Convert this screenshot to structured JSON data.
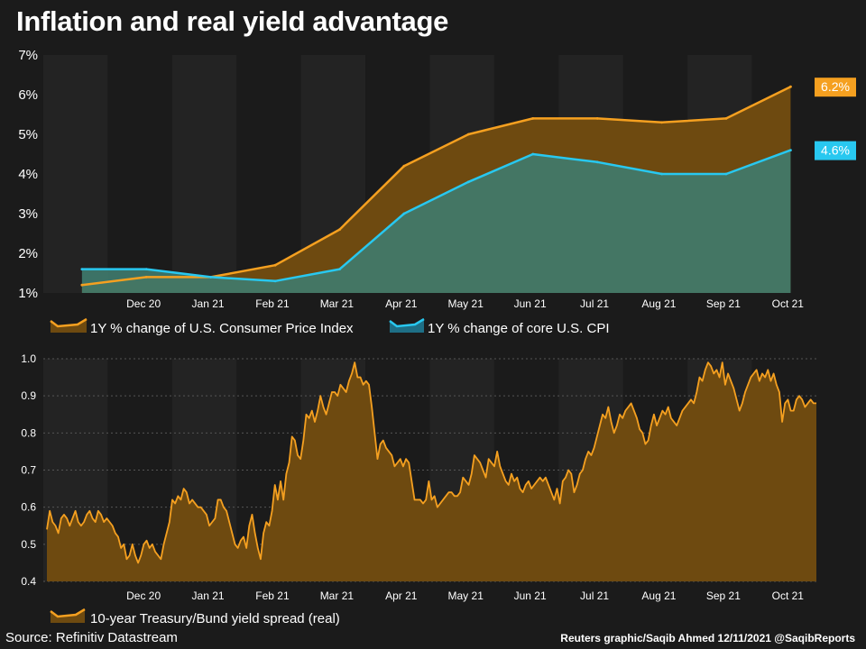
{
  "title": "Inflation and real yield advantage",
  "source": "Source: Refinitiv Datastream",
  "credit": "Reuters graphic/Saqib Ahmed 12/11/2021 @SaqibReports",
  "colors": {
    "background": "#1b1b1b",
    "band_dark": "#232323",
    "band_light": "#1b1b1b",
    "orange": "#f5a020",
    "cyan": "#28c8f0",
    "orange_fill": "#6e4a10",
    "teal_fill": "#3f7b6e"
  },
  "chart_data": [
    {
      "type": "area",
      "x_labels": [
        "Dec 20",
        "Jan 21",
        "Feb 21",
        "Mar 21",
        "Apr 21",
        "May 21",
        "Jun 21",
        "Jul 21",
        "Aug 21",
        "Sep 21",
        "Oct 21"
      ],
      "yticks": [
        "1%",
        "2%",
        "3%",
        "4%",
        "5%",
        "6%",
        "7%"
      ],
      "ylim": [
        1,
        7
      ],
      "grid": false,
      "legend_position": "bottom-left",
      "series": [
        {
          "name": "1Y % change of U.S. Consumer Price Index",
          "x": [
            "Nov 20",
            "Dec 20",
            "Jan 21",
            "Feb 21",
            "Mar 21",
            "Apr 21",
            "May 21",
            "Jun 21",
            "Jul 21",
            "Aug 21",
            "Sep 21",
            "Oct 21"
          ],
          "values": [
            1.2,
            1.4,
            1.4,
            1.7,
            2.6,
            4.2,
            5.0,
            5.4,
            5.4,
            5.3,
            5.4,
            6.2
          ],
          "end_label": "6.2%",
          "color": "#f5a020"
        },
        {
          "name": "1Y % change of core U.S. CPI",
          "x": [
            "Nov 20",
            "Dec 20",
            "Jan 21",
            "Feb 21",
            "Mar 21",
            "Apr 21",
            "May 21",
            "Jun 21",
            "Jul 21",
            "Aug 21",
            "Sep 21",
            "Oct 21"
          ],
          "values": [
            1.6,
            1.6,
            1.4,
            1.3,
            1.6,
            3.0,
            3.8,
            4.5,
            4.3,
            4.0,
            4.0,
            4.6
          ],
          "end_label": "4.6%",
          "color": "#28c8f0"
        }
      ]
    },
    {
      "type": "area",
      "x_labels": [
        "Dec 20",
        "Jan 21",
        "Feb 21",
        "Mar 21",
        "Apr 21",
        "May 21",
        "Jun 21",
        "Jul 21",
        "Aug 21",
        "Sep 21",
        "Oct 21"
      ],
      "yticks": [
        "0.4",
        "0.5",
        "0.6",
        "0.7",
        "0.8",
        "0.9",
        "1.0"
      ],
      "ylim": [
        0.4,
        1.0
      ],
      "grid": true,
      "legend_position": "bottom-left",
      "series": [
        {
          "name": "10-year Treasury/Bund yield spread (real)",
          "x_range": [
            "Nov 20",
            "Nov 21"
          ],
          "values": [
            0.54,
            0.59,
            0.56,
            0.55,
            0.53,
            0.57,
            0.58,
            0.57,
            0.55,
            0.57,
            0.59,
            0.56,
            0.55,
            0.56,
            0.58,
            0.59,
            0.57,
            0.56,
            0.59,
            0.58,
            0.56,
            0.57,
            0.56,
            0.55,
            0.53,
            0.52,
            0.49,
            0.5,
            0.46,
            0.47,
            0.5,
            0.47,
            0.45,
            0.47,
            0.5,
            0.51,
            0.49,
            0.5,
            0.48,
            0.47,
            0.46,
            0.5,
            0.53,
            0.56,
            0.62,
            0.61,
            0.63,
            0.62,
            0.65,
            0.64,
            0.61,
            0.62,
            0.61,
            0.6,
            0.6,
            0.59,
            0.58,
            0.55,
            0.56,
            0.57,
            0.62,
            0.62,
            0.6,
            0.59,
            0.56,
            0.53,
            0.5,
            0.49,
            0.51,
            0.52,
            0.49,
            0.55,
            0.58,
            0.53,
            0.49,
            0.46,
            0.53,
            0.56,
            0.55,
            0.59,
            0.66,
            0.62,
            0.67,
            0.62,
            0.69,
            0.72,
            0.79,
            0.78,
            0.74,
            0.73,
            0.78,
            0.85,
            0.84,
            0.86,
            0.83,
            0.86,
            0.9,
            0.87,
            0.85,
            0.88,
            0.91,
            0.91,
            0.9,
            0.93,
            0.92,
            0.91,
            0.94,
            0.96,
            0.99,
            0.95,
            0.95,
            0.93,
            0.94,
            0.93,
            0.87,
            0.8,
            0.73,
            0.77,
            0.78,
            0.76,
            0.75,
            0.74,
            0.71,
            0.72,
            0.73,
            0.71,
            0.73,
            0.72,
            0.67,
            0.62,
            0.62,
            0.62,
            0.61,
            0.62,
            0.67,
            0.62,
            0.63,
            0.6,
            0.61,
            0.62,
            0.63,
            0.64,
            0.64,
            0.63,
            0.63,
            0.64,
            0.68,
            0.67,
            0.66,
            0.69,
            0.74,
            0.73,
            0.72,
            0.7,
            0.68,
            0.73,
            0.72,
            0.71,
            0.75,
            0.71,
            0.69,
            0.67,
            0.66,
            0.69,
            0.67,
            0.68,
            0.65,
            0.64,
            0.66,
            0.67,
            0.65,
            0.66,
            0.67,
            0.68,
            0.67,
            0.68,
            0.66,
            0.64,
            0.62,
            0.65,
            0.61,
            0.67,
            0.68,
            0.7,
            0.69,
            0.64,
            0.66,
            0.69,
            0.7,
            0.73,
            0.75,
            0.74,
            0.76,
            0.79,
            0.82,
            0.85,
            0.84,
            0.87,
            0.83,
            0.8,
            0.82,
            0.85,
            0.84,
            0.86,
            0.87,
            0.88,
            0.86,
            0.84,
            0.81,
            0.8,
            0.77,
            0.78,
            0.82,
            0.85,
            0.82,
            0.84,
            0.86,
            0.85,
            0.87,
            0.84,
            0.83,
            0.82,
            0.84,
            0.86,
            0.87,
            0.88,
            0.89,
            0.88,
            0.91,
            0.95,
            0.94,
            0.97,
            0.99,
            0.98,
            0.96,
            0.97,
            0.95,
            0.99,
            0.93,
            0.96,
            0.94,
            0.92,
            0.89,
            0.86,
            0.88,
            0.91,
            0.93,
            0.95,
            0.96,
            0.97,
            0.94,
            0.96,
            0.95,
            0.97,
            0.94,
            0.96,
            0.93,
            0.91,
            0.83,
            0.88,
            0.89,
            0.86,
            0.86,
            0.89,
            0.9,
            0.89,
            0.87,
            0.88,
            0.89,
            0.88,
            0.88
          ]
        }
      ]
    }
  ]
}
